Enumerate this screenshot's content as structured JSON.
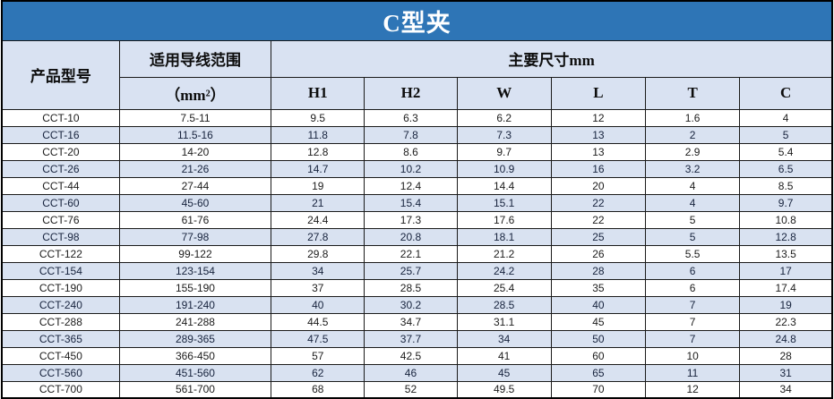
{
  "title": "C型夹",
  "colors": {
    "title_bar": "#2e75b6",
    "title_text": "#ffffff",
    "header_bg": "#d9e2f2",
    "alt_row_bg": "#d9e2f1",
    "grid_border": "#1a1a1a"
  },
  "table": {
    "col_product": "产品型号",
    "col_range_line1": "适用导线范围",
    "col_range_unit": "（mm²）",
    "col_dims": "主要尺寸mm",
    "dim_headers": [
      "H1",
      "H2",
      "W",
      "L",
      "T",
      "C"
    ],
    "rows": [
      [
        "CCT-10",
        "7.5-11",
        "9.5",
        "6.3",
        "6.2",
        "12",
        "1.6",
        "4"
      ],
      [
        "CCT-16",
        "11.5-16",
        "11.8",
        "7.8",
        "7.3",
        "13",
        "2",
        "5"
      ],
      [
        "CCT-20",
        "14-20",
        "12.8",
        "8.6",
        "9.7",
        "13",
        "2.9",
        "5.4"
      ],
      [
        "CCT-26",
        "21-26",
        "14.7",
        "10.2",
        "10.9",
        "16",
        "3.2",
        "6.5"
      ],
      [
        "CCT-44",
        "27-44",
        "19",
        "12.4",
        "14.4",
        "20",
        "4",
        "8.5"
      ],
      [
        "CCT-60",
        "45-60",
        "21",
        "15.4",
        "15.1",
        "22",
        "4",
        "9.7"
      ],
      [
        "CCT-76",
        "61-76",
        "24.4",
        "17.3",
        "17.6",
        "22",
        "5",
        "10.8"
      ],
      [
        "CCT-98",
        "77-98",
        "27.8",
        "20.8",
        "18.1",
        "25",
        "5",
        "12.8"
      ],
      [
        "CCT-122",
        "99-122",
        "29.8",
        "22.1",
        "21.2",
        "26",
        "5.5",
        "13.5"
      ],
      [
        "CCT-154",
        "123-154",
        "34",
        "25.7",
        "24.2",
        "28",
        "6",
        "17"
      ],
      [
        "CCT-190",
        "155-190",
        "37",
        "28.5",
        "25.4",
        "35",
        "6",
        "17.4"
      ],
      [
        "CCT-240",
        "191-240",
        "40",
        "30.2",
        "28.5",
        "40",
        "7",
        "19"
      ],
      [
        "CCT-288",
        "241-288",
        "44.5",
        "34.7",
        "31.1",
        "45",
        "7",
        "22.3"
      ],
      [
        "CCT-365",
        "289-365",
        "47.5",
        "37.7",
        "34",
        "50",
        "7",
        "24.8"
      ],
      [
        "CCT-450",
        "366-450",
        "57",
        "42.5",
        "41",
        "60",
        "10",
        "28"
      ],
      [
        "CCT-560",
        "451-560",
        "62",
        "46",
        "45",
        "65",
        "11",
        "31"
      ],
      [
        "CCT-700",
        "561-700",
        "68",
        "52",
        "49.5",
        "70",
        "12",
        "34"
      ]
    ]
  }
}
